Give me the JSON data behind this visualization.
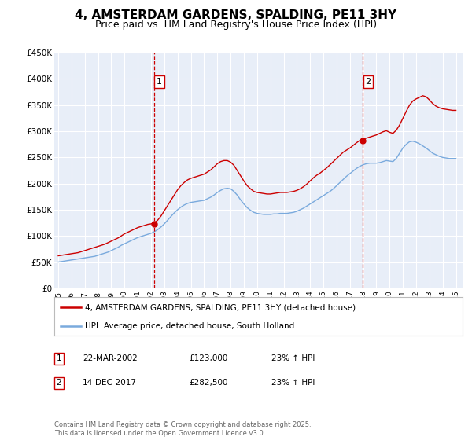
{
  "title": "4, AMSTERDAM GARDENS, SPALDING, PE11 3HY",
  "subtitle": "Price paid vs. HM Land Registry's House Price Index (HPI)",
  "title_fontsize": 11,
  "subtitle_fontsize": 9,
  "background_color": "#ffffff",
  "plot_bg_color": "#e8eef8",
  "grid_color": "#ffffff",
  "red_color": "#cc0000",
  "blue_color": "#7aaadd",
  "vline_color": "#cc0000",
  "ylim": [
    0,
    450000
  ],
  "yticks": [
    0,
    50000,
    100000,
    150000,
    200000,
    250000,
    300000,
    350000,
    400000,
    450000
  ],
  "ytick_labels": [
    "£0",
    "£50K",
    "£100K",
    "£150K",
    "£200K",
    "£250K",
    "£300K",
    "£350K",
    "£400K",
    "£450K"
  ],
  "xlim_start": 1994.7,
  "xlim_end": 2025.5,
  "xtick_years": [
    1995,
    1996,
    1997,
    1998,
    1999,
    2000,
    2001,
    2002,
    2003,
    2004,
    2005,
    2006,
    2007,
    2008,
    2009,
    2010,
    2011,
    2012,
    2013,
    2014,
    2015,
    2016,
    2017,
    2018,
    2019,
    2020,
    2021,
    2022,
    2023,
    2024,
    2025
  ],
  "vline1_x": 2002.22,
  "vline2_x": 2017.96,
  "marker1_x": 2002.22,
  "marker1_y": 123000,
  "marker2_x": 2017.96,
  "marker2_y": 282500,
  "label1": "1",
  "label2": "2",
  "legend_line1": "4, AMSTERDAM GARDENS, SPALDING, PE11 3HY (detached house)",
  "legend_line2": "HPI: Average price, detached house, South Holland",
  "table_row1": [
    "1",
    "22-MAR-2002",
    "£123,000",
    "23% ↑ HPI"
  ],
  "table_row2": [
    "2",
    "14-DEC-2017",
    "£282,500",
    "23% ↑ HPI"
  ],
  "footnote": "Contains HM Land Registry data © Crown copyright and database right 2025.\nThis data is licensed under the Open Government Licence v3.0.",
  "red_series_x": [
    1995.0,
    1995.25,
    1995.5,
    1995.75,
    1996.0,
    1996.25,
    1996.5,
    1996.75,
    1997.0,
    1997.25,
    1997.5,
    1997.75,
    1998.0,
    1998.25,
    1998.5,
    1998.75,
    1999.0,
    1999.25,
    1999.5,
    1999.75,
    2000.0,
    2000.25,
    2000.5,
    2000.75,
    2001.0,
    2001.25,
    2001.5,
    2001.75,
    2002.0,
    2002.25,
    2002.5,
    2002.75,
    2003.0,
    2003.25,
    2003.5,
    2003.75,
    2004.0,
    2004.25,
    2004.5,
    2004.75,
    2005.0,
    2005.25,
    2005.5,
    2005.75,
    2006.0,
    2006.25,
    2006.5,
    2006.75,
    2007.0,
    2007.25,
    2007.5,
    2007.75,
    2008.0,
    2008.25,
    2008.5,
    2008.75,
    2009.0,
    2009.25,
    2009.5,
    2009.75,
    2010.0,
    2010.25,
    2010.5,
    2010.75,
    2011.0,
    2011.25,
    2011.5,
    2011.75,
    2012.0,
    2012.25,
    2012.5,
    2012.75,
    2013.0,
    2013.25,
    2013.5,
    2013.75,
    2014.0,
    2014.25,
    2014.5,
    2014.75,
    2015.0,
    2015.25,
    2015.5,
    2015.75,
    2016.0,
    2016.25,
    2016.5,
    2016.75,
    2017.0,
    2017.25,
    2017.5,
    2017.75,
    2018.0,
    2018.25,
    2018.5,
    2018.75,
    2019.0,
    2019.25,
    2019.5,
    2019.75,
    2020.0,
    2020.25,
    2020.5,
    2020.75,
    2021.0,
    2021.25,
    2021.5,
    2021.75,
    2022.0,
    2022.25,
    2022.5,
    2022.75,
    2023.0,
    2023.25,
    2023.5,
    2023.75,
    2024.0,
    2024.25,
    2024.5,
    2024.75,
    2025.0
  ],
  "red_series_y": [
    62000,
    63000,
    64000,
    65000,
    66000,
    67000,
    68000,
    70000,
    72000,
    74000,
    76000,
    78000,
    80000,
    82000,
    84000,
    87000,
    90000,
    93000,
    96000,
    100000,
    104000,
    107000,
    110000,
    113000,
    116000,
    118000,
    120000,
    122000,
    123000,
    125000,
    130000,
    138000,
    148000,
    158000,
    168000,
    178000,
    188000,
    196000,
    202000,
    207000,
    210000,
    212000,
    214000,
    216000,
    218000,
    222000,
    226000,
    232000,
    238000,
    242000,
    244000,
    244000,
    241000,
    235000,
    225000,
    215000,
    205000,
    196000,
    190000,
    185000,
    183000,
    182000,
    181000,
    180000,
    180000,
    181000,
    182000,
    183000,
    183000,
    183000,
    184000,
    185000,
    187000,
    190000,
    194000,
    199000,
    205000,
    211000,
    216000,
    220000,
    225000,
    230000,
    236000,
    242000,
    248000,
    254000,
    260000,
    264000,
    268000,
    273000,
    278000,
    282500,
    285000,
    287000,
    289000,
    291000,
    293000,
    296000,
    299000,
    301000,
    298000,
    296000,
    302000,
    312000,
    325000,
    338000,
    350000,
    358000,
    362000,
    365000,
    368000,
    366000,
    360000,
    353000,
    348000,
    345000,
    343000,
    342000,
    341000,
    340000,
    340000
  ],
  "blue_series_x": [
    1995.0,
    1995.25,
    1995.5,
    1995.75,
    1996.0,
    1996.25,
    1996.5,
    1996.75,
    1997.0,
    1997.25,
    1997.5,
    1997.75,
    1998.0,
    1998.25,
    1998.5,
    1998.75,
    1999.0,
    1999.25,
    1999.5,
    1999.75,
    2000.0,
    2000.25,
    2000.5,
    2000.75,
    2001.0,
    2001.25,
    2001.5,
    2001.75,
    2002.0,
    2002.25,
    2002.5,
    2002.75,
    2003.0,
    2003.25,
    2003.5,
    2003.75,
    2004.0,
    2004.25,
    2004.5,
    2004.75,
    2005.0,
    2005.25,
    2005.5,
    2005.75,
    2006.0,
    2006.25,
    2006.5,
    2006.75,
    2007.0,
    2007.25,
    2007.5,
    2007.75,
    2008.0,
    2008.25,
    2008.5,
    2008.75,
    2009.0,
    2009.25,
    2009.5,
    2009.75,
    2010.0,
    2010.25,
    2010.5,
    2010.75,
    2011.0,
    2011.25,
    2011.5,
    2011.75,
    2012.0,
    2012.25,
    2012.5,
    2012.75,
    2013.0,
    2013.25,
    2013.5,
    2013.75,
    2014.0,
    2014.25,
    2014.5,
    2014.75,
    2015.0,
    2015.25,
    2015.5,
    2015.75,
    2016.0,
    2016.25,
    2016.5,
    2016.75,
    2017.0,
    2017.25,
    2017.5,
    2017.75,
    2018.0,
    2018.25,
    2018.5,
    2018.75,
    2019.0,
    2019.25,
    2019.5,
    2019.75,
    2020.0,
    2020.25,
    2020.5,
    2020.75,
    2021.0,
    2021.25,
    2021.5,
    2021.75,
    2022.0,
    2022.25,
    2022.5,
    2022.75,
    2023.0,
    2023.25,
    2023.5,
    2023.75,
    2024.0,
    2024.25,
    2024.5,
    2024.75,
    2025.0
  ],
  "blue_series_y": [
    50000,
    51000,
    52000,
    53000,
    54000,
    55000,
    56000,
    57000,
    58000,
    59000,
    60000,
    61000,
    63000,
    65000,
    67000,
    69000,
    72000,
    75000,
    78000,
    82000,
    85000,
    88000,
    91000,
    94000,
    97000,
    99000,
    101000,
    103000,
    105000,
    108000,
    112000,
    117000,
    123000,
    130000,
    137000,
    144000,
    150000,
    155000,
    159000,
    162000,
    164000,
    165000,
    166000,
    167000,
    168000,
    171000,
    174000,
    178000,
    183000,
    187000,
    190000,
    191000,
    190000,
    185000,
    178000,
    169000,
    161000,
    154000,
    149000,
    145000,
    143000,
    142000,
    141000,
    141000,
    141000,
    142000,
    142000,
    143000,
    143000,
    143000,
    144000,
    145000,
    147000,
    150000,
    153000,
    157000,
    161000,
    165000,
    169000,
    173000,
    177000,
    181000,
    185000,
    190000,
    196000,
    202000,
    208000,
    214000,
    219000,
    224000,
    229000,
    233000,
    236000,
    238000,
    239000,
    239000,
    239000,
    240000,
    242000,
    244000,
    243000,
    242000,
    248000,
    258000,
    268000,
    275000,
    280000,
    281000,
    279000,
    276000,
    272000,
    268000,
    263000,
    258000,
    255000,
    252000,
    250000,
    249000,
    248000,
    248000,
    248000
  ]
}
